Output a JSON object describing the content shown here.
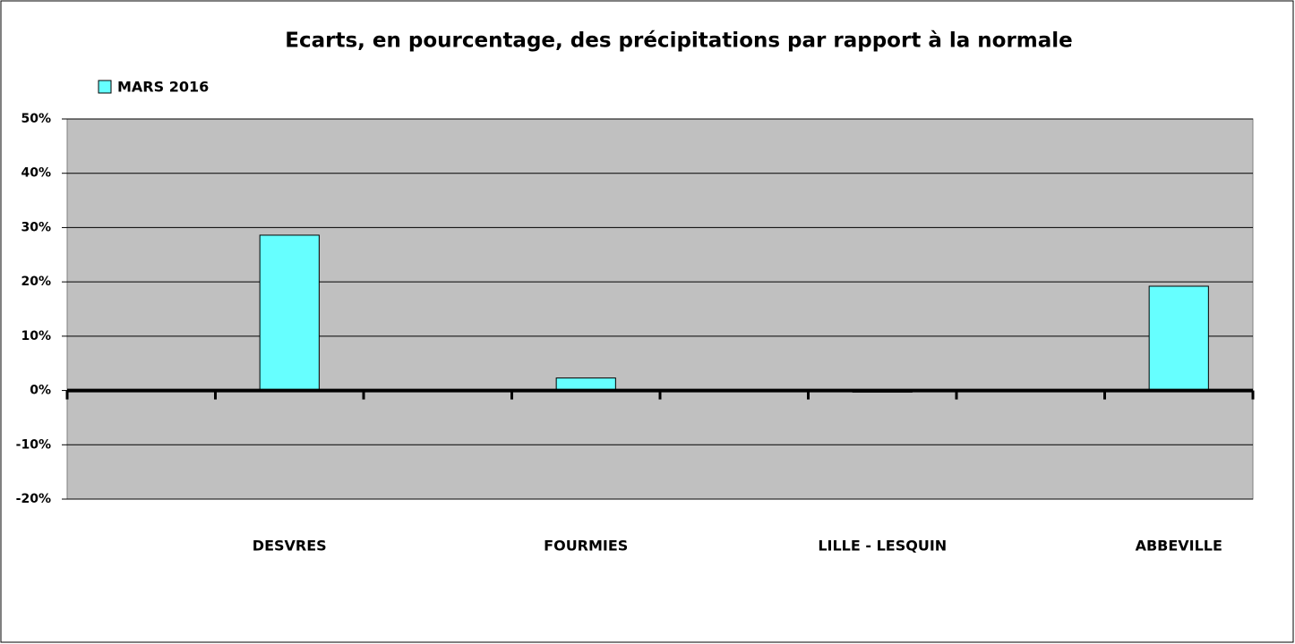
{
  "chart_data": {
    "type": "bar",
    "title": "Ecarts, en pourcentage, des précipitations par rapport à la normale",
    "categories": [
      null,
      "DESVRES",
      null,
      "FOURMIES",
      null,
      "LILLE - LESQUIN",
      null,
      "ABBEVILLE"
    ],
    "series": [
      {
        "name": "MARS 2016",
        "color": "#66ffff",
        "values": [
          null,
          28.6,
          null,
          2.3,
          null,
          -0.3,
          null,
          19.2
        ]
      }
    ],
    "ylim": [
      -20,
      50
    ],
    "yticks": [
      {
        "value": -20,
        "label": "-20%"
      },
      {
        "value": -10,
        "label": "-10%"
      },
      {
        "value": 0,
        "label": "0%"
      },
      {
        "value": 10,
        "label": "10%"
      },
      {
        "value": 20,
        "label": "20%"
      },
      {
        "value": 30,
        "label": "30%"
      },
      {
        "value": 40,
        "label": "40%"
      },
      {
        "value": 50,
        "label": "50%"
      }
    ],
    "grid": true,
    "legend": "top-left"
  }
}
